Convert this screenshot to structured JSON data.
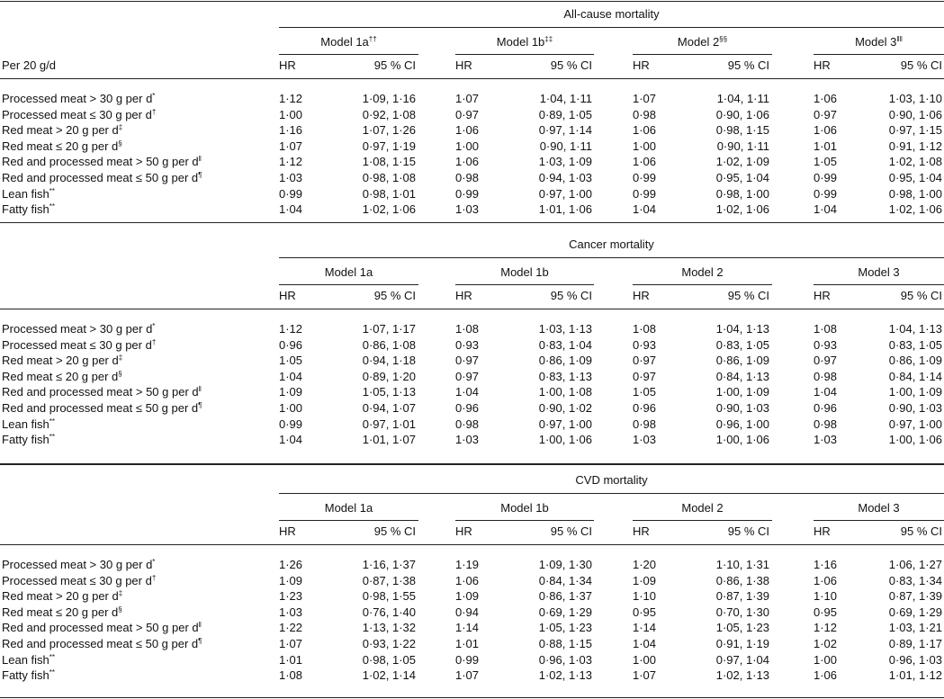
{
  "table": {
    "corner_label": "Per 20 g/d",
    "sections": [
      {
        "title": "All-cause mortality",
        "models": [
          {
            "name": "Model 1a",
            "sup": "††",
            "hr_label": "HR",
            "ci_label": "95 % CI"
          },
          {
            "name": "Model 1b",
            "sup": "‡‡",
            "hr_label": "HR",
            "ci_label": "95 % CI"
          },
          {
            "name": "Model 2",
            "sup": "§§",
            "hr_label": "HR",
            "ci_label": "95 % CI"
          },
          {
            "name": "Model 3",
            "sup": "‖‖",
            "hr_label": "HR",
            "ci_label": "95 % CI"
          }
        ],
        "rows": [
          {
            "label": "Processed meat > 30 g per d",
            "sup": "*",
            "cells": [
              "1·12",
              "1·09, 1·16",
              "1·07",
              "1·04, 1·11",
              "1·07",
              "1·04, 1·11",
              "1·06",
              "1·03, 1·10"
            ]
          },
          {
            "label": "Processed meat ≤ 30 g per d",
            "sup": "†",
            "cells": [
              "1·00",
              "0·92, 1·08",
              "0·97",
              "0·89, 1·05",
              "0·98",
              "0·90, 1·06",
              "0·97",
              "0·90, 1·06"
            ]
          },
          {
            "label": "Red meat > 20 g per d",
            "sup": "‡",
            "cells": [
              "1·16",
              "1·07, 1·26",
              "1·06",
              "0·97, 1·14",
              "1·06",
              "0·98, 1·15",
              "1·06",
              "0·97, 1·15"
            ]
          },
          {
            "label": "Red meat ≤ 20 g per d",
            "sup": "§",
            "cells": [
              "1·07",
              "0·97, 1·19",
              "1·00",
              "0·90, 1·11",
              "1·00",
              "0·90, 1·11",
              "1·01",
              "0·91, 1·12"
            ]
          },
          {
            "label": "Red and processed meat > 50 g per d",
            "sup": "‖",
            "cells": [
              "1·12",
              "1·08, 1·15",
              "1·06",
              "1·03, 1·09",
              "1·06",
              "1·02, 1·09",
              "1·05",
              "1·02, 1·08"
            ]
          },
          {
            "label": "Red and processed meat ≤ 50 g per d",
            "sup": "¶",
            "cells": [
              "1·03",
              "0·98, 1·08",
              "0·98",
              "0·94, 1·03",
              "0·99",
              "0·95, 1·04",
              "0·99",
              "0·95, 1·04"
            ]
          },
          {
            "label": "Lean fish",
            "sup": "**",
            "cells": [
              "0·99",
              "0·98, 1·01",
              "0·99",
              "0·97, 1·00",
              "0·99",
              "0·98, 1·00",
              "0·99",
              "0·98, 1·00"
            ]
          },
          {
            "label": "Fatty fish",
            "sup": "**",
            "cells": [
              "1·04",
              "1·02, 1·06",
              "1·03",
              "1·01, 1·06",
              "1·04",
              "1·02, 1·06",
              "1·04",
              "1·02, 1·06"
            ]
          }
        ]
      },
      {
        "title": "Cancer mortality",
        "models": [
          {
            "name": "Model 1a",
            "hr_label": "HR",
            "ci_label": "95 % CI"
          },
          {
            "name": "Model 1b",
            "hr_label": "HR",
            "ci_label": "95 % CI"
          },
          {
            "name": "Model 2",
            "hr_label": "HR",
            "ci_label": "95 % CI"
          },
          {
            "name": "Model 3",
            "hr_label": "HR",
            "ci_label": "95 % CI"
          }
        ],
        "rows": [
          {
            "label": "Processed meat > 30 g per d",
            "sup": "*",
            "cells": [
              "1·12",
              "1·07, 1·17",
              "1·08",
              "1·03, 1·13",
              "1·08",
              "1·04, 1·13",
              "1·08",
              "1·04, 1·13"
            ]
          },
          {
            "label": "Processed meat ≤ 30 g per d",
            "sup": "†",
            "cells": [
              "0·96",
              "0·86, 1·08",
              "0·93",
              "0·83, 1·04",
              "0·93",
              "0·83, 1·05",
              "0·93",
              "0·83, 1·05"
            ]
          },
          {
            "label": "Red meat > 20 g per d",
            "sup": "‡",
            "cells": [
              "1·05",
              "0·94, 1·18",
              "0·97",
              "0·86, 1·09",
              "0·97",
              "0·86, 1·09",
              "0·97",
              "0·86, 1·09"
            ]
          },
          {
            "label": "Red meat ≤ 20 g per d",
            "sup": "§",
            "cells": [
              "1·04",
              "0·89, 1·20",
              "0·97",
              "0·83, 1·13",
              "0·97",
              "0·84, 1·13",
              "0·98",
              "0·84, 1·14"
            ]
          },
          {
            "label": "Red and processed meat > 50 g per d",
            "sup": "‖",
            "cells": [
              "1·09",
              "1·05, 1·13",
              "1·04",
              "1·00, 1·08",
              "1·05",
              "1·00, 1·09",
              "1·04",
              "1·00, 1·09"
            ]
          },
          {
            "label": "Red and processed meat ≤ 50 g per d",
            "sup": "¶",
            "cells": [
              "1·00",
              "0·94, 1·07",
              "0·96",
              "0·90, 1·02",
              "0·96",
              "0·90, 1·03",
              "0·96",
              "0·90, 1·03"
            ]
          },
          {
            "label": "Lean fish",
            "sup": "**",
            "cells": [
              "0·99",
              "0·97, 1·01",
              "0·98",
              "0·97, 1·00",
              "0·98",
              "0·96, 1·00",
              "0·98",
              "0·97, 1·00"
            ]
          },
          {
            "label": "Fatty fish",
            "sup": "**",
            "cells": [
              "1·04",
              "1·01, 1·07",
              "1·03",
              "1·00, 1·06",
              "1·03",
              "1·00, 1·06",
              "1·03",
              "1·00, 1·06"
            ]
          }
        ]
      },
      {
        "title": "CVD mortality",
        "models": [
          {
            "name": "Model 1a",
            "hr_label": "HR",
            "ci_label": "95 % CI"
          },
          {
            "name": "Model 1b",
            "hr_label": "HR",
            "ci_label": "95 % CI"
          },
          {
            "name": "Model 2",
            "hr_label": "HR",
            "ci_label": "95 % CI"
          },
          {
            "name": "Model 3",
            "hr_label": "HR",
            "ci_label": "95 % CI"
          }
        ],
        "rows": [
          {
            "label": "Processed meat > 30 g per d",
            "sup": "*",
            "cells": [
              "1·26",
              "1·16, 1·37",
              "1·19",
              "1·09, 1·30",
              "1·20",
              "1·10, 1·31",
              "1·16",
              "1·06, 1·27"
            ]
          },
          {
            "label": "Processed meat ≤ 30 g per d",
            "sup": "†",
            "cells": [
              "1·09",
              "0·87, 1·38",
              "1·06",
              "0·84, 1·34",
              "1·09",
              "0·86, 1·38",
              "1·06",
              "0·83, 1·34"
            ]
          },
          {
            "label": "Red meat > 20 g per d",
            "sup": "‡",
            "cells": [
              "1·23",
              "0·98, 1·55",
              "1·09",
              "0·86, 1·37",
              "1·10",
              "0·87, 1·39",
              "1·10",
              "0·87, 1·39"
            ]
          },
          {
            "label": "Red meat ≤ 20 g per d",
            "sup": "§",
            "cells": [
              "1·03",
              "0·76, 1·40",
              "0·94",
              "0·69, 1·29",
              "0·95",
              "0·70, 1·30",
              "0·95",
              "0·69, 1·29"
            ]
          },
          {
            "label": "Red and processed meat > 50 g per d",
            "sup": "‖",
            "cells": [
              "1·22",
              "1·13, 1·32",
              "1·14",
              "1·05, 1·23",
              "1·14",
              "1·05, 1·23",
              "1·12",
              "1·03, 1·21"
            ]
          },
          {
            "label": "Red and processed meat ≤ 50 g per d",
            "sup": "¶",
            "cells": [
              "1·07",
              "0·93, 1·22",
              "1·01",
              "0·88, 1·15",
              "1·04",
              "0·91, 1·19",
              "1·02",
              "0·89, 1·17"
            ]
          },
          {
            "label": "Lean fish",
            "sup": "**",
            "cells": [
              "1·01",
              "0·98, 1·05",
              "0·99",
              "0·96, 1·03",
              "1·00",
              "0·97, 1·04",
              "1·00",
              "0·96, 1·03"
            ]
          },
          {
            "label": "Fatty fish",
            "sup": "**",
            "cells": [
              "1·08",
              "1·02, 1·14",
              "1·07",
              "1·02, 1·13",
              "1·07",
              "1·02, 1·13",
              "1·06",
              "1·01, 1·12"
            ]
          }
        ]
      }
    ]
  }
}
